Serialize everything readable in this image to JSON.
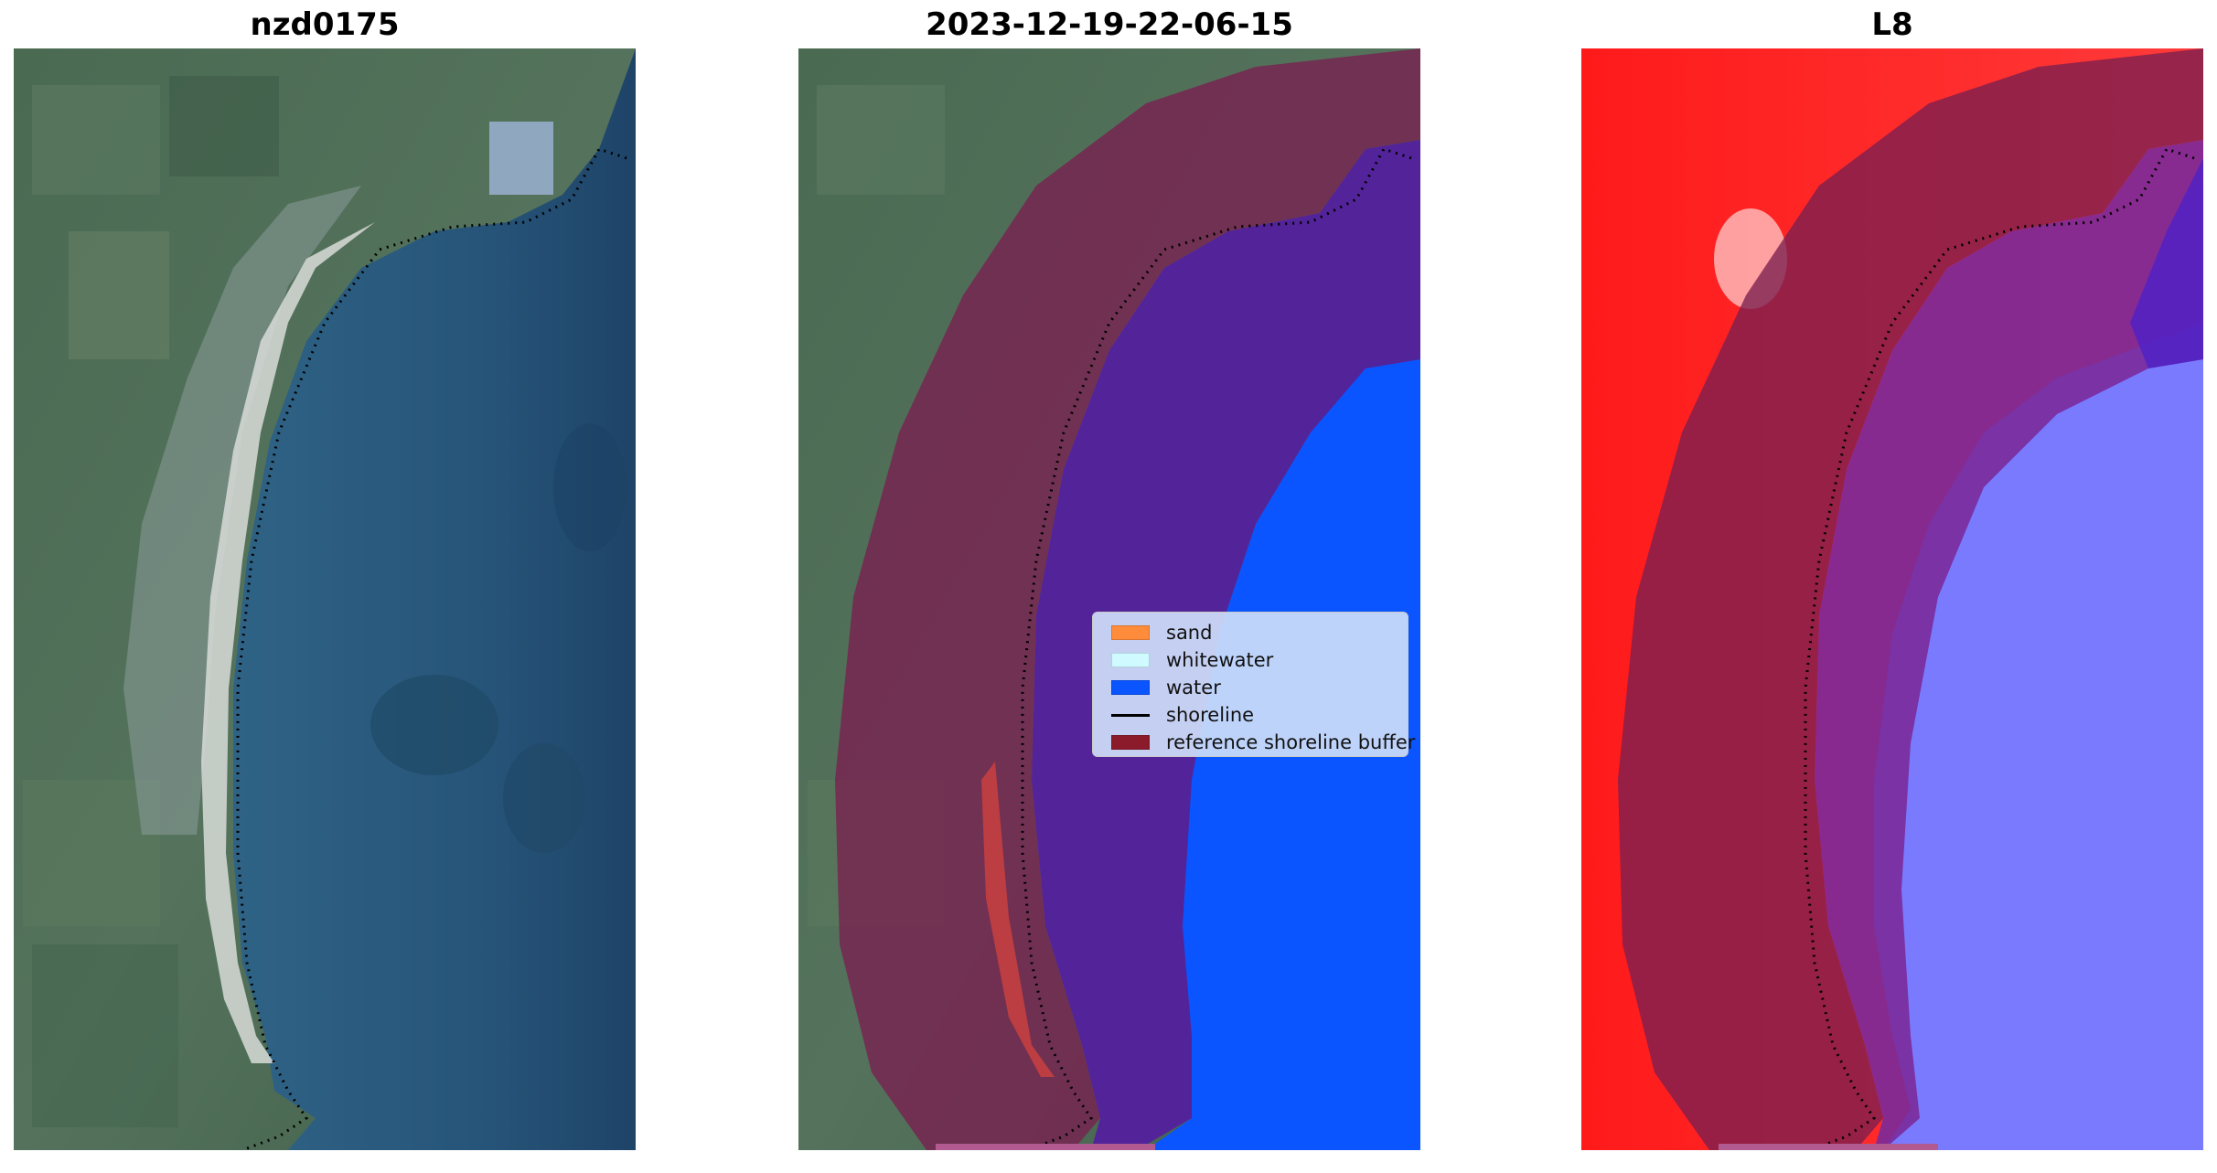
{
  "panels": [
    {
      "title": "nzd0175"
    },
    {
      "title": "2023-12-19-22-06-15"
    },
    {
      "title": "L8"
    }
  ],
  "legend": {
    "items": [
      {
        "label": "sand",
        "color": "#ff8c3a"
      },
      {
        "label": "whitewater",
        "color": "#cffaff"
      },
      {
        "label": "water",
        "color": "#0a55ff"
      },
      {
        "label": "shoreline",
        "color": "#000000"
      },
      {
        "label": "reference shoreline buffer",
        "color": "#8b1a2a"
      }
    ]
  },
  "colors": {
    "land": "#4f6b58",
    "sea": "#2a5878",
    "buffer": "#7a1f50",
    "water_class": "#0a55ff",
    "l8_land": "#ff2020",
    "l8_water": "#7a7aff"
  }
}
